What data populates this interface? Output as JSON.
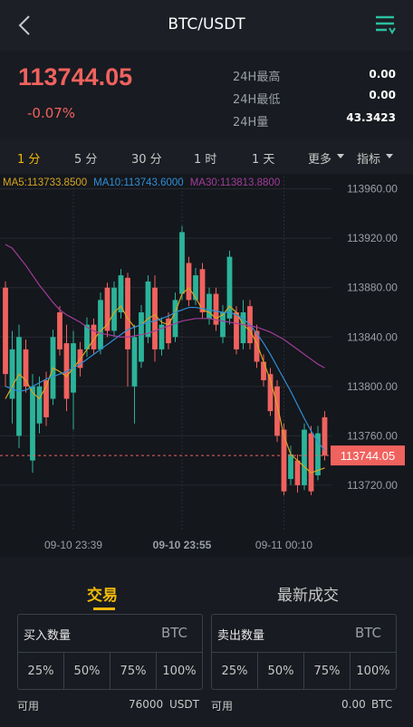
{
  "header": {
    "title": "BTC/USDT"
  },
  "ticker": {
    "price": "113744.05",
    "change": "-0.07%",
    "stats": [
      {
        "label": "24H最高",
        "value": "0.00"
      },
      {
        "label": "24H最低",
        "value": "0.00"
      },
      {
        "label": "24H量",
        "value": "43.3423"
      }
    ]
  },
  "timeframes": [
    "1 分",
    "5 分",
    "30 分",
    "1 时",
    "1 天"
  ],
  "menus": [
    "更多",
    "指标"
  ],
  "chart_data": {
    "type": "candlestick",
    "categories": [
      null,
      null,
      null,
      null,
      null,
      null,
      null,
      null,
      null,
      null,
      "09-10 23:39",
      null,
      null,
      null,
      null,
      null,
      null,
      null,
      null,
      null,
      null,
      null,
      null,
      null,
      null,
      null,
      "09-10 23:55",
      null,
      null,
      null,
      null,
      null,
      null,
      null,
      null,
      null,
      null,
      null,
      null,
      null,
      null,
      "09-11 00:10",
      null,
      null,
      null,
      null,
      null,
      null
    ],
    "open": [
      113880,
      113790,
      113760,
      113830,
      113740,
      113770,
      113805,
      113790,
      113860,
      113835,
      113795,
      113830,
      113830,
      113850,
      113830,
      113880,
      113845,
      113860,
      113888,
      113800,
      113820,
      113840,
      113880,
      113830,
      113855,
      113840,
      113875,
      113900,
      113870,
      113895,
      113855,
      113875,
      113840,
      113855,
      113860,
      113835,
      113865,
      113845,
      113820,
      113810,
      113800,
      113765,
      113725,
      113740,
      113720,
      113762,
      113728,
      113775
    ],
    "high": [
      113885,
      113845,
      113850,
      113838,
      113810,
      113808,
      113812,
      113846,
      113865,
      113850,
      113845,
      113836,
      113856,
      113855,
      113876,
      113884,
      113885,
      113895,
      113892,
      113850,
      113866,
      113890,
      113890,
      113856,
      113860,
      113876,
      113930,
      113905,
      113896,
      113900,
      113880,
      113880,
      113866,
      113910,
      113865,
      113870,
      113870,
      113850,
      113826,
      113815,
      113805,
      113770,
      113752,
      113745,
      113770,
      113768,
      113768,
      113780
    ],
    "low": [
      113800,
      113770,
      113750,
      113795,
      113730,
      113762,
      113768,
      113785,
      113825,
      113780,
      113765,
      113808,
      113824,
      113826,
      113826,
      113840,
      113840,
      113855,
      113800,
      113770,
      113815,
      113835,
      113820,
      113825,
      113830,
      113836,
      113870,
      113865,
      113866,
      113855,
      113850,
      113845,
      113835,
      113850,
      113826,
      113830,
      113830,
      113815,
      113800,
      113776,
      113755,
      113712,
      113720,
      113714,
      113716,
      113712,
      113724,
      113740
    ],
    "close": [
      113810,
      113830,
      113840,
      113800,
      113800,
      113800,
      113775,
      113840,
      113830,
      113790,
      113835,
      113815,
      113850,
      113830,
      113870,
      113845,
      113880,
      113890,
      113830,
      113840,
      113860,
      113885,
      113830,
      113850,
      113835,
      113870,
      113925,
      113870,
      113890,
      113860,
      113875,
      113850,
      113860,
      113905,
      113830,
      113860,
      113835,
      113820,
      113805,
      113780,
      113760,
      113715,
      113745,
      113720,
      113765,
      113715,
      113762,
      113744.05
    ],
    "up_color": "#2bb39a",
    "down_color": "#f0625e",
    "series": [
      {
        "name": "MA5:113733.8500",
        "color": "#d9a521",
        "values": [
          113790,
          113800,
          113810,
          113805,
          113795,
          113790,
          113800,
          113815,
          113812,
          113808,
          113815,
          113822,
          113830,
          113838,
          113845,
          113850,
          113860,
          113865,
          113855,
          113848,
          113850,
          113855,
          113858,
          113852,
          113850,
          113860,
          113875,
          113880,
          113872,
          113862,
          113860,
          113855,
          113858,
          113865,
          113860,
          113850,
          113845,
          113835,
          113820,
          113805,
          113785,
          113760,
          113745,
          113740,
          113735,
          113730,
          113732,
          113734
        ]
      },
      {
        "name": "MA10:113743.6000",
        "color": "#2f8fd8",
        "values": [
          113800,
          113798,
          113796,
          113797,
          113800,
          113803,
          113806,
          113808,
          113810,
          113812,
          113815,
          113818,
          113822,
          113826,
          113830,
          113834,
          113838,
          113842,
          113846,
          113848,
          113850,
          113852,
          113853,
          113855,
          113857,
          113860,
          113862,
          113864,
          113864,
          113863,
          113862,
          113861,
          113860,
          113860,
          113858,
          113855,
          113850,
          113843,
          113835,
          113826,
          113816,
          113806,
          113796,
          113785,
          113774,
          113764,
          113755,
          113748
        ]
      },
      {
        "name": "MA30:113813.8800",
        "color": "#a23c9a",
        "values": [
          113915,
          113912,
          113905,
          113898,
          113890,
          113882,
          113875,
          113868,
          113862,
          113858,
          113855,
          113852,
          113848,
          113845,
          113843,
          113842,
          113841,
          113840,
          113840,
          113841,
          113842,
          113843,
          113845,
          113847,
          113849,
          113851,
          113853,
          113854,
          113855,
          113855,
          113855,
          113854,
          113853,
          113852,
          113851,
          113850,
          113849,
          113848,
          113846,
          113844,
          113841,
          113838,
          113834,
          113830,
          113826,
          113822,
          113818,
          113815
        ]
      }
    ],
    "last_price": 113744.05,
    "ylim": [
      113684,
      113970
    ],
    "yticks": [
      {
        "value": 113960,
        "label": "113960.00"
      },
      {
        "value": 113920,
        "label": "113920.00"
      },
      {
        "value": 113880,
        "label": "113880.00"
      },
      {
        "value": 113840,
        "label": "113840.00"
      },
      {
        "value": 113800,
        "label": "113800.00"
      },
      {
        "value": 113760,
        "label": "113760.00"
      },
      {
        "value": 113720,
        "label": "113720.00"
      }
    ],
    "grid": true
  },
  "tabs": [
    "交易",
    "最新成交"
  ],
  "trade": {
    "buy": {
      "label": "买入数量",
      "unit": "BTC",
      "percents": [
        "25%",
        "50%",
        "75%",
        "100%"
      ],
      "available_label": "可用",
      "available_value": "76000",
      "available_unit": "USDT"
    },
    "sell": {
      "label": "卖出数量",
      "unit": "BTC",
      "percents": [
        "25%",
        "50%",
        "75%",
        "100%"
      ],
      "available_label": "可用",
      "available_value": "0.00",
      "available_unit": "BTC"
    }
  }
}
